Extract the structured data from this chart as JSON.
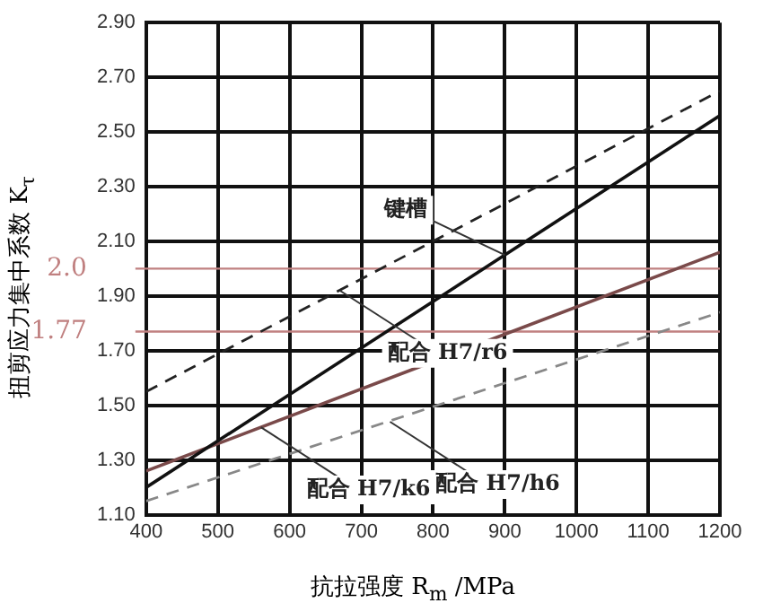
{
  "chart_data": {
    "type": "line",
    "xlabel": "抗拉强度 R$_{m}$ /MPa",
    "ylabel": "扭剪应力集中系数 K$_{τ}$",
    "x": [
      400,
      1200
    ],
    "series": [
      {
        "color": "#111111",
        "values": [
          1.2,
          2.56
        ],
        "line_style": "solid"
      },
      {
        "color": "#222222",
        "values": [
          1.55,
          2.65
        ],
        "line_style": "dashed"
      },
      {
        "color": "#7a4a4a",
        "values": [
          1.26,
          2.06
        ],
        "line_style": "solid"
      },
      {
        "color": "#888888",
        "values": [
          1.15,
          1.84
        ],
        "line_style": "dashed"
      }
    ],
    "xlim": [
      400,
      1200
    ],
    "xticks": [
      400,
      500,
      600,
      700,
      800,
      900,
      1000,
      1100,
      1200
    ],
    "ylim": [
      1.1,
      2.9
    ],
    "yticks": [
      {
        "value": 1.1,
        "label": "1.10"
      },
      {
        "value": 1.3,
        "label": "1.30"
      },
      {
        "value": 1.5,
        "label": "1.50"
      },
      {
        "value": 1.7,
        "label": "1.70"
      },
      {
        "value": 1.9,
        "label": "1.90"
      },
      {
        "value": 2.1,
        "label": "2.10"
      },
      {
        "value": 2.3,
        "label": "2.30"
      },
      {
        "value": 2.5,
        "label": "2.50"
      },
      {
        "value": 2.7,
        "label": "2.70"
      },
      {
        "value": 2.9,
        "label": "2.90"
      }
    ],
    "ref_lines": [
      {
        "axis": "y",
        "value": 2.0,
        "label": "2.0",
        "color": "#c08080"
      },
      {
        "axis": "y",
        "value": 1.77,
        "label": "1.77",
        "color": "#c08080"
      }
    ],
    "annotations": [
      {
        "text": "配合 H7/r6",
        "x": 670,
        "y": 1.92
      },
      {
        "text": "键槽",
        "x": 900,
        "y": 2.05
      },
      {
        "text": "配合 H7/h6",
        "x": 740,
        "y": 1.44
      },
      {
        "text": "配合 H7/k6",
        "x": 560,
        "y": 1.42
      }
    ],
    "grid": true,
    "legend": false,
    "marker": "none"
  }
}
